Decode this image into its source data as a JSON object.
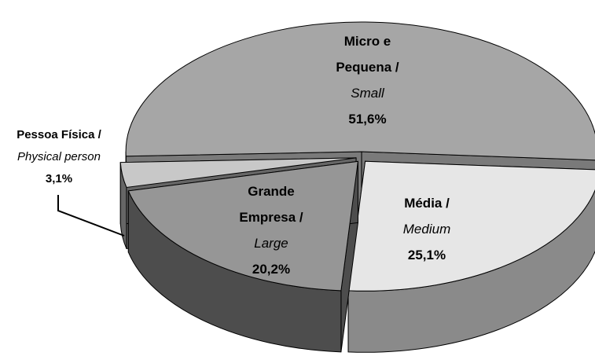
{
  "chart_data": {
    "type": "pie",
    "categories": [
      "Micro e Pequena /",
      "Média /",
      "Grande Empresa /",
      "Pessoa Física /"
    ],
    "subcategories": [
      "Small",
      "Medium",
      "Large",
      "Physical person"
    ],
    "values": [
      51.6,
      25.1,
      20.2,
      3.1
    ],
    "value_labels": [
      "51,6%",
      "25,1%",
      "20,2%",
      "3,1%"
    ],
    "colors": [
      "#a6a6a6",
      "#e6e6e6",
      "#969696",
      "#c8c8c8"
    ],
    "side_colors": [
      "#7a7a7a",
      "#8a8a8a",
      "#4d4d4d",
      "#666666"
    ]
  }
}
